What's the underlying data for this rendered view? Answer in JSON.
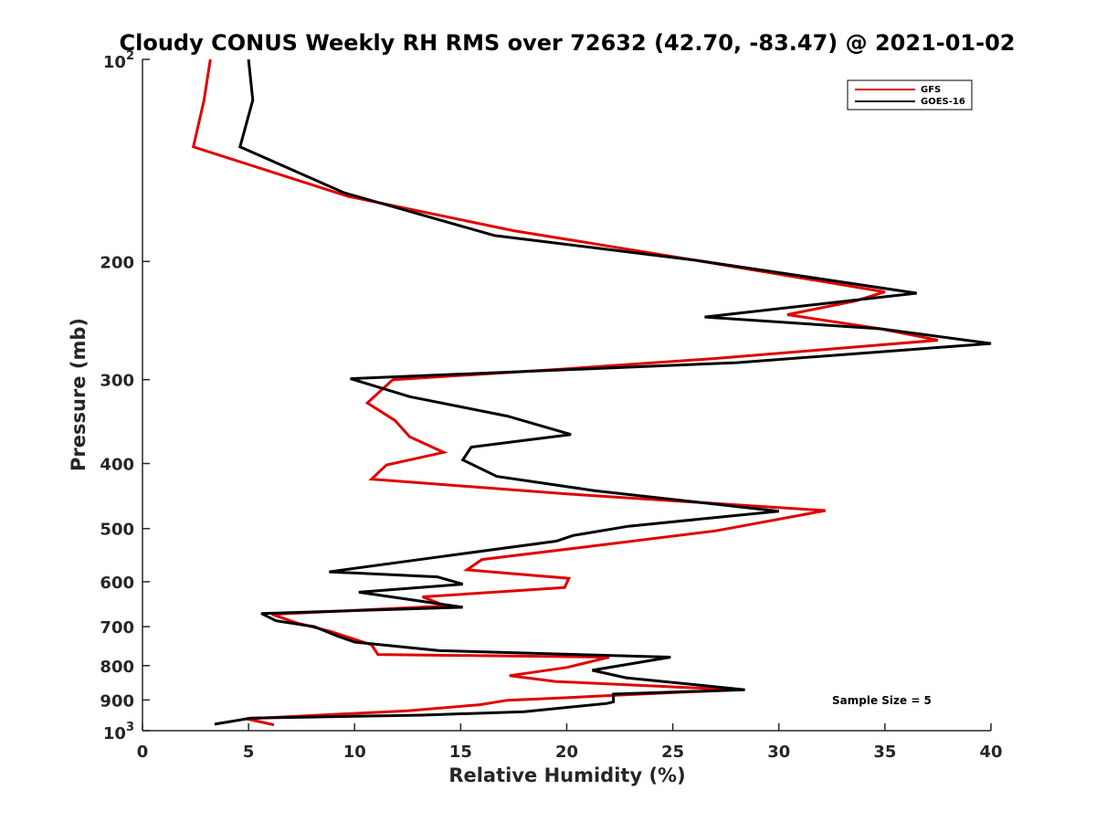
{
  "chart_data": {
    "type": "line",
    "title": "Cloudy CONUS Weekly RH RMS over 72632 (42.70, -83.47) @ 2021-01-02",
    "xlabel": "Relative Humidity (%)",
    "ylabel": "Pressure (mb)",
    "xlim": [
      0,
      40
    ],
    "ylim": [
      100,
      1000
    ],
    "yscale": "log",
    "y_reversed": true,
    "x_ticks": [
      "0",
      "5",
      "10",
      "15",
      "20",
      "25",
      "30",
      "35",
      "40"
    ],
    "y_ticks": [
      {
        "value": 100,
        "base": "10",
        "exp": "2"
      },
      {
        "value": 200,
        "label": "200"
      },
      {
        "value": 300,
        "label": "300"
      },
      {
        "value": 400,
        "label": "400"
      },
      {
        "value": 500,
        "label": "500"
      },
      {
        "value": 600,
        "label": "600"
      },
      {
        "value": 700,
        "label": "700"
      },
      {
        "value": 800,
        "label": "800"
      },
      {
        "value": 900,
        "label": "900"
      },
      {
        "value": 1000,
        "base": "10",
        "exp": "3"
      }
    ],
    "grid": false,
    "legend": {
      "position": "top-right"
    },
    "annotation": "Sample Size = 5",
    "series": [
      {
        "name": "GFS",
        "color": "#e00000",
        "points": [
          [
            3.2,
            100
          ],
          [
            2.9,
            115
          ],
          [
            2.4,
            135
          ],
          [
            9.7,
            160
          ],
          [
            17.5,
            180
          ],
          [
            26.0,
            199
          ],
          [
            35.0,
            222
          ],
          [
            33.6,
            229
          ],
          [
            30.4,
            240
          ],
          [
            34.8,
            252
          ],
          [
            37.5,
            262
          ],
          [
            27.0,
            279
          ],
          [
            19.3,
            290
          ],
          [
            11.8,
            300
          ],
          [
            10.6,
            325
          ],
          [
            11.9,
            345
          ],
          [
            12.6,
            365
          ],
          [
            14.2,
            385
          ],
          [
            11.5,
            402
          ],
          [
            10.8,
            422
          ],
          [
            20.0,
            444
          ],
          [
            32.2,
            470
          ],
          [
            27.0,
            504
          ],
          [
            21.0,
            532
          ],
          [
            16.0,
            556
          ],
          [
            15.3,
            576
          ],
          [
            20.1,
            593
          ],
          [
            19.9,
            612
          ],
          [
            13.2,
            632
          ],
          [
            14.3,
            652
          ],
          [
            6.1,
            671
          ],
          [
            7.2,
            690
          ],
          [
            8.9,
            712
          ],
          [
            10.8,
            745
          ],
          [
            11.1,
            770
          ],
          [
            22.0,
            777
          ],
          [
            20.0,
            805
          ],
          [
            17.3,
            828
          ],
          [
            19.5,
            845
          ],
          [
            28.0,
            869
          ],
          [
            22.5,
            885
          ],
          [
            20.0,
            893
          ],
          [
            17.2,
            901
          ],
          [
            15.9,
            915
          ],
          [
            12.5,
            934
          ],
          [
            4.9,
            960
          ],
          [
            6.2,
            980
          ]
        ]
      },
      {
        "name": "GOES-16",
        "color": "#000000",
        "points": [
          [
            5.0,
            100
          ],
          [
            5.2,
            115
          ],
          [
            4.6,
            135
          ],
          [
            9.5,
            158
          ],
          [
            16.6,
            183
          ],
          [
            26.0,
            199
          ],
          [
            36.5,
            223
          ],
          [
            26.5,
            242
          ],
          [
            34.8,
            252
          ],
          [
            40.0,
            265
          ],
          [
            28.0,
            283
          ],
          [
            9.8,
            299
          ],
          [
            12.6,
            318
          ],
          [
            17.2,
            340
          ],
          [
            20.2,
            362
          ],
          [
            15.5,
            378
          ],
          [
            15.1,
            395
          ],
          [
            16.7,
            418
          ],
          [
            21.3,
            439
          ],
          [
            30.0,
            471
          ],
          [
            22.9,
            496
          ],
          [
            20.3,
            512
          ],
          [
            19.5,
            522
          ],
          [
            13.8,
            552
          ],
          [
            8.8,
            580
          ],
          [
            13.9,
            590
          ],
          [
            15.1,
            605
          ],
          [
            10.2,
            622
          ],
          [
            15.1,
            655
          ],
          [
            5.6,
            669
          ],
          [
            6.3,
            686
          ],
          [
            8.1,
            700
          ],
          [
            9.2,
            723
          ],
          [
            10.0,
            738
          ],
          [
            14.0,
            760
          ],
          [
            24.9,
            777
          ],
          [
            21.2,
            813
          ],
          [
            22.8,
            834
          ],
          [
            28.4,
            869
          ],
          [
            22.2,
            882
          ],
          [
            22.2,
            906
          ],
          [
            21.9,
            911
          ],
          [
            18.0,
            937
          ],
          [
            13.2,
            948
          ],
          [
            5.1,
            958
          ],
          [
            3.4,
            978
          ]
        ]
      }
    ]
  }
}
